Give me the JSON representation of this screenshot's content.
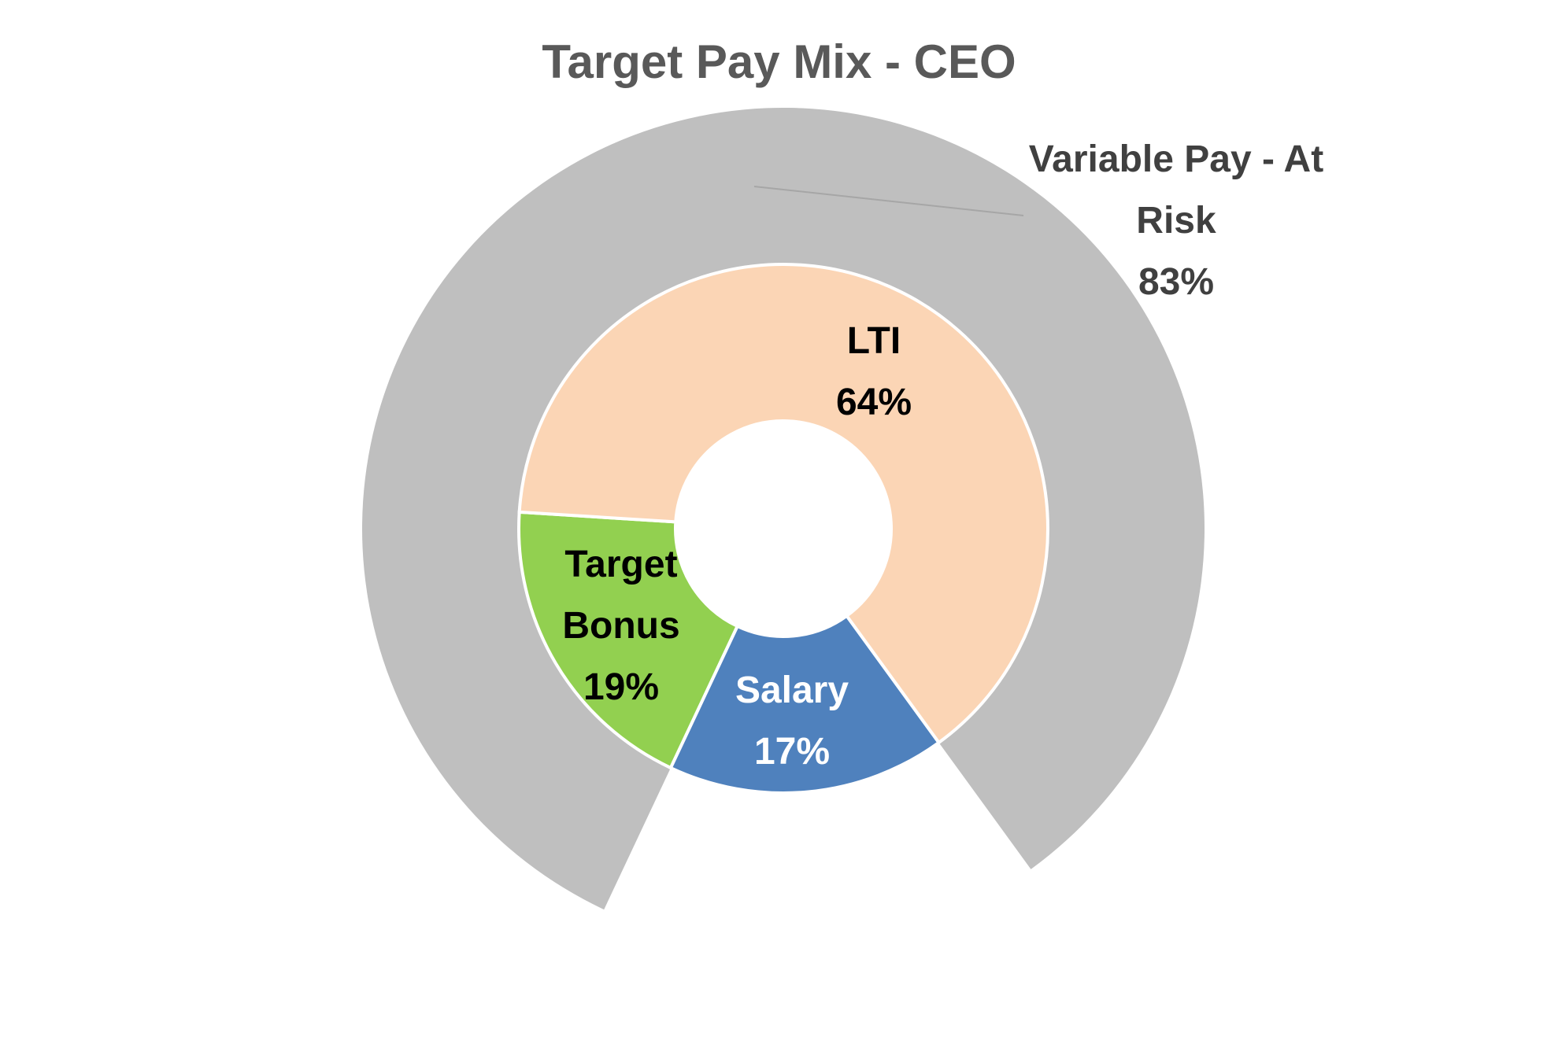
{
  "chart_data": {
    "type": "donut",
    "title": "Target Pay Mix - CEO",
    "inner": {
      "categories": [
        "LTI",
        "Salary",
        "Target Bonus"
      ],
      "values": [
        64,
        17,
        19
      ],
      "value_labels": [
        "64%",
        "17%",
        "19%"
      ],
      "colors": [
        "#fbd5b5",
        "#4f81bd",
        "#92d050"
      ]
    },
    "outer": {
      "categories": [
        "Variable Pay - At Risk"
      ],
      "values": [
        83
      ],
      "value_labels": [
        "83%"
      ],
      "colors": [
        "#bfbfbf"
      ]
    }
  }
}
